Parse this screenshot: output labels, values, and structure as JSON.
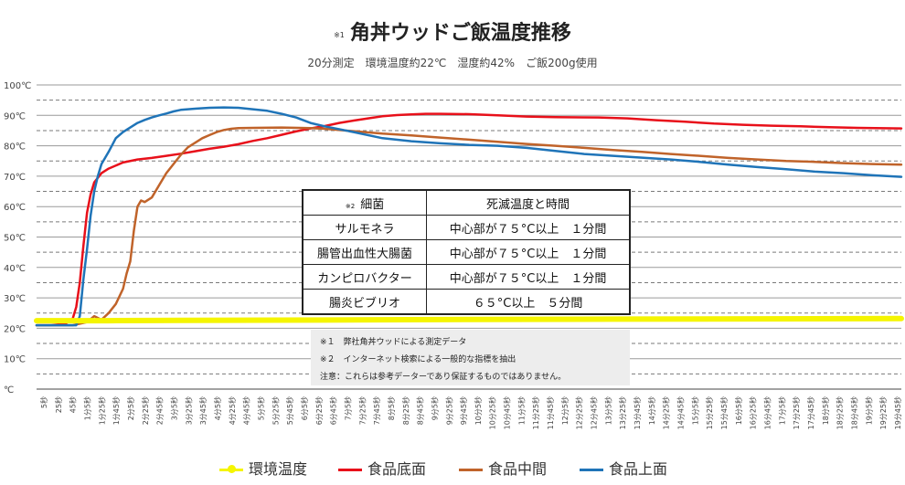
{
  "title": {
    "mark": "※1",
    "text": "角丼ウッドご飯温度推移"
  },
  "subtitle": "20分測定　環境温度約22℃　湿度約42%　ご飯200g使用",
  "colors": {
    "ambient": "#f5f500",
    "bottom": "#e8101a",
    "middle": "#c0632a",
    "top": "#1f74b8"
  },
  "chart_data": {
    "type": "line",
    "ylabel": "",
    "xlabel": "",
    "ylim": [
      0,
      100
    ],
    "y_ticks": [
      "100℃",
      "90℃",
      "80℃",
      "70℃",
      "60℃",
      "50℃",
      "40℃",
      "30℃",
      "20℃",
      "10℃",
      "℃"
    ],
    "grid": "dashed horizontal every 5℃",
    "legend_position": "bottom",
    "x_ticks": [
      "5秒",
      "25秒",
      "45秒",
      "1分5秒",
      "1分25秒",
      "1分45秒",
      "2分5秒",
      "2分25秒",
      "2分45秒",
      "3分5秒",
      "3分25秒",
      "3分45秒",
      "4分5秒",
      "4分25秒",
      "4分45秒",
      "5分5秒",
      "5分25秒",
      "5分45秒",
      "6分5秒",
      "6分25秒",
      "6分45秒",
      "7分5秒",
      "7分25秒",
      "7分45秒",
      "8分5秒",
      "8分25秒",
      "8分45秒",
      "9分5秒",
      "9分25秒",
      "9分45秒",
      "10分5秒",
      "10分25秒",
      "10分45秒",
      "11分5秒",
      "11分25秒",
      "11分45秒",
      "12分5秒",
      "12分25秒",
      "12分45秒",
      "13分5秒",
      "13分25秒",
      "13分45秒",
      "14分5秒",
      "14分25秒",
      "14分45秒",
      "15分5秒",
      "15分25秒",
      "15分45秒",
      "16分5秒",
      "16分25秒",
      "16分45秒",
      "17分5秒",
      "17分25秒",
      "17分45秒",
      "18分5秒",
      "18分25秒",
      "18分45秒",
      "19分5秒",
      "19分25秒",
      "19分45秒"
    ],
    "series": [
      {
        "name": "環境温度",
        "key": "ambient",
        "points": [
          [
            0,
            22.5
          ],
          [
            100,
            22.5
          ],
          [
            200,
            22.6
          ],
          [
            400,
            22.7
          ],
          [
            600,
            22.9
          ],
          [
            800,
            23.0
          ],
          [
            1000,
            23.1
          ],
          [
            1200,
            23.2
          ]
        ]
      },
      {
        "name": "食品底面",
        "key": "bottom",
        "points": [
          [
            0,
            21
          ],
          [
            20,
            21
          ],
          [
            40,
            21.5
          ],
          [
            50,
            23
          ],
          [
            55,
            27
          ],
          [
            60,
            35
          ],
          [
            65,
            47
          ],
          [
            70,
            58
          ],
          [
            75,
            64
          ],
          [
            80,
            68
          ],
          [
            90,
            71
          ],
          [
            100,
            72.5
          ],
          [
            120,
            74.5
          ],
          [
            140,
            75.5
          ],
          [
            160,
            76
          ],
          [
            180,
            76.7
          ],
          [
            200,
            77.4
          ],
          [
            220,
            78.2
          ],
          [
            240,
            79
          ],
          [
            260,
            79.7
          ],
          [
            280,
            80.5
          ],
          [
            300,
            81.6
          ],
          [
            320,
            82.5
          ],
          [
            340,
            83.6
          ],
          [
            360,
            84.7
          ],
          [
            380,
            85.7
          ],
          [
            400,
            86.5
          ],
          [
            420,
            87.5
          ],
          [
            440,
            88.3
          ],
          [
            460,
            89
          ],
          [
            480,
            89.7
          ],
          [
            500,
            90.1
          ],
          [
            520,
            90.3
          ],
          [
            540,
            90.5
          ],
          [
            560,
            90.5
          ],
          [
            600,
            90.4
          ],
          [
            640,
            90
          ],
          [
            680,
            89.6
          ],
          [
            720,
            89.4
          ],
          [
            780,
            89.3
          ],
          [
            820,
            89
          ],
          [
            860,
            88.4
          ],
          [
            900,
            87.9
          ],
          [
            940,
            87.3
          ],
          [
            980,
            86.9
          ],
          [
            1020,
            86.6
          ],
          [
            1060,
            86.4
          ],
          [
            1100,
            86.1
          ],
          [
            1140,
            85.9
          ],
          [
            1200,
            85.7
          ]
        ]
      },
      {
        "name": "食品中間",
        "key": "middle",
        "points": [
          [
            0,
            21
          ],
          [
            50,
            21
          ],
          [
            60,
            21.5
          ],
          [
            70,
            22
          ],
          [
            80,
            24
          ],
          [
            90,
            22.8
          ],
          [
            100,
            25
          ],
          [
            110,
            28
          ],
          [
            120,
            33
          ],
          [
            125,
            38
          ],
          [
            130,
            42
          ],
          [
            135,
            52
          ],
          [
            140,
            60
          ],
          [
            145,
            62
          ],
          [
            150,
            61.5
          ],
          [
            160,
            63
          ],
          [
            170,
            67
          ],
          [
            180,
            71
          ],
          [
            190,
            74
          ],
          [
            200,
            77
          ],
          [
            210,
            79.5
          ],
          [
            220,
            81
          ],
          [
            230,
            82.5
          ],
          [
            240,
            83.5
          ],
          [
            250,
            84.5
          ],
          [
            260,
            85.2
          ],
          [
            270,
            85.6
          ],
          [
            280,
            85.8
          ],
          [
            300,
            85.9
          ],
          [
            340,
            86
          ],
          [
            380,
            85.8
          ],
          [
            400,
            85.6
          ],
          [
            440,
            84.8
          ],
          [
            480,
            84
          ],
          [
            520,
            83.4
          ],
          [
            560,
            82.7
          ],
          [
            600,
            82
          ],
          [
            640,
            81.3
          ],
          [
            680,
            80.6
          ],
          [
            720,
            80
          ],
          [
            760,
            79.3
          ],
          [
            800,
            78.6
          ],
          [
            840,
            78
          ],
          [
            880,
            77.3
          ],
          [
            920,
            76.7
          ],
          [
            960,
            76
          ],
          [
            1000,
            75.5
          ],
          [
            1040,
            75
          ],
          [
            1080,
            74.7
          ],
          [
            1120,
            74.3
          ],
          [
            1160,
            74
          ],
          [
            1200,
            73.8
          ]
        ]
      },
      {
        "name": "食品上面",
        "key": "top",
        "points": [
          [
            0,
            21
          ],
          [
            55,
            21
          ],
          [
            60,
            24
          ],
          [
            65,
            36
          ],
          [
            70,
            46
          ],
          [
            75,
            57
          ],
          [
            80,
            65
          ],
          [
            85,
            70
          ],
          [
            90,
            74
          ],
          [
            100,
            78
          ],
          [
            110,
            82.5
          ],
          [
            120,
            84.5
          ],
          [
            130,
            86
          ],
          [
            140,
            87.5
          ],
          [
            150,
            88.5
          ],
          [
            160,
            89.3
          ],
          [
            170,
            90
          ],
          [
            180,
            90.6
          ],
          [
            190,
            91.3
          ],
          [
            200,
            91.8
          ],
          [
            220,
            92.2
          ],
          [
            240,
            92.5
          ],
          [
            260,
            92.6
          ],
          [
            280,
            92.5
          ],
          [
            300,
            92
          ],
          [
            320,
            91.5
          ],
          [
            340,
            90.5
          ],
          [
            360,
            89.3
          ],
          [
            380,
            87.5
          ],
          [
            400,
            86.4
          ],
          [
            440,
            84.5
          ],
          [
            480,
            82.5
          ],
          [
            520,
            81.5
          ],
          [
            560,
            80.8
          ],
          [
            600,
            80.3
          ],
          [
            640,
            80
          ],
          [
            680,
            79.3
          ],
          [
            720,
            78.3
          ],
          [
            760,
            77.3
          ],
          [
            800,
            76.7
          ],
          [
            840,
            76.1
          ],
          [
            880,
            75.5
          ],
          [
            920,
            74.7
          ],
          [
            960,
            73.8
          ],
          [
            1000,
            73
          ],
          [
            1040,
            72.3
          ],
          [
            1080,
            71.5
          ],
          [
            1120,
            71
          ],
          [
            1160,
            70.3
          ],
          [
            1200,
            69.8
          ]
        ]
      }
    ]
  },
  "table": {
    "mark": "※2",
    "headers": [
      "細菌",
      "死滅温度と時間"
    ],
    "rows": [
      [
        "サルモネラ",
        "中心部が７５°C以上　１分間"
      ],
      [
        "腸管出血性大腸菌",
        "中心部が７５°C以上　１分間"
      ],
      [
        "カンピロバクター",
        "中心部が７５°C以上　１分間"
      ],
      [
        "腸炎ビブリオ",
        "６５°C以上　５分間"
      ]
    ]
  },
  "notes": [
    "※１　弊社角丼ウッドによる測定データ",
    "※２　インターネット検索による一般的な指標を抽出",
    "注意：これらは参考データーであり保証するものではありません。"
  ]
}
